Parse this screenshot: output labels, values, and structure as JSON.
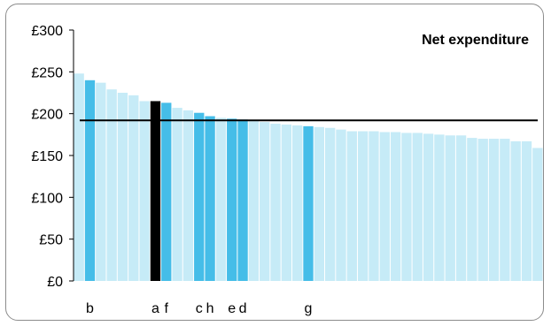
{
  "chart_data": {
    "type": "bar",
    "title": "Net expenditure",
    "xlabel": "",
    "ylabel": "",
    "ylim": [
      0,
      300
    ],
    "yticks": [
      0,
      50,
      100,
      150,
      200,
      250,
      300
    ],
    "ytick_labels": [
      "£0",
      "£50",
      "£100",
      "£150",
      "£200",
      "£250",
      "£300"
    ],
    "grid": false,
    "reference_line": 192,
    "values": [
      248,
      240,
      237,
      229,
      225,
      222,
      215,
      215,
      213,
      207,
      204,
      201,
      197,
      195,
      194,
      193,
      191,
      190,
      188,
      187,
      186,
      185,
      184,
      183,
      181,
      179,
      179,
      179,
      178,
      178,
      177,
      177,
      176,
      175,
      174,
      174,
      171,
      170,
      170,
      170,
      167,
      167,
      159
    ],
    "labels": [
      "",
      "b",
      "",
      "",
      "",
      "",
      "",
      "a",
      "f",
      "",
      "",
      "c",
      "h",
      "",
      "e",
      "d",
      "",
      "",
      "",
      "",
      "",
      "g",
      "",
      "",
      "",
      "",
      "",
      "",
      "",
      "",
      "",
      "",
      "",
      "",
      "",
      "",
      "",
      "",
      "",
      "",
      "",
      "",
      ""
    ],
    "highlight": [
      "",
      "mid",
      "",
      "",
      "",
      "",
      "",
      "dark",
      "mid",
      "",
      "",
      "mid",
      "mid",
      "",
      "mid",
      "mid",
      "",
      "",
      "",
      "",
      "",
      "mid",
      "",
      "",
      "",
      "",
      "",
      "",
      "",
      "",
      "",
      "",
      "",
      "",
      "",
      "",
      "",
      "",
      "",
      "",
      "",
      "",
      ""
    ],
    "colors": {
      "light": "#c6ebf7",
      "mid": "#45bde8",
      "dark": "#000000",
      "line": "#000000",
      "axis": "#000000"
    }
  }
}
